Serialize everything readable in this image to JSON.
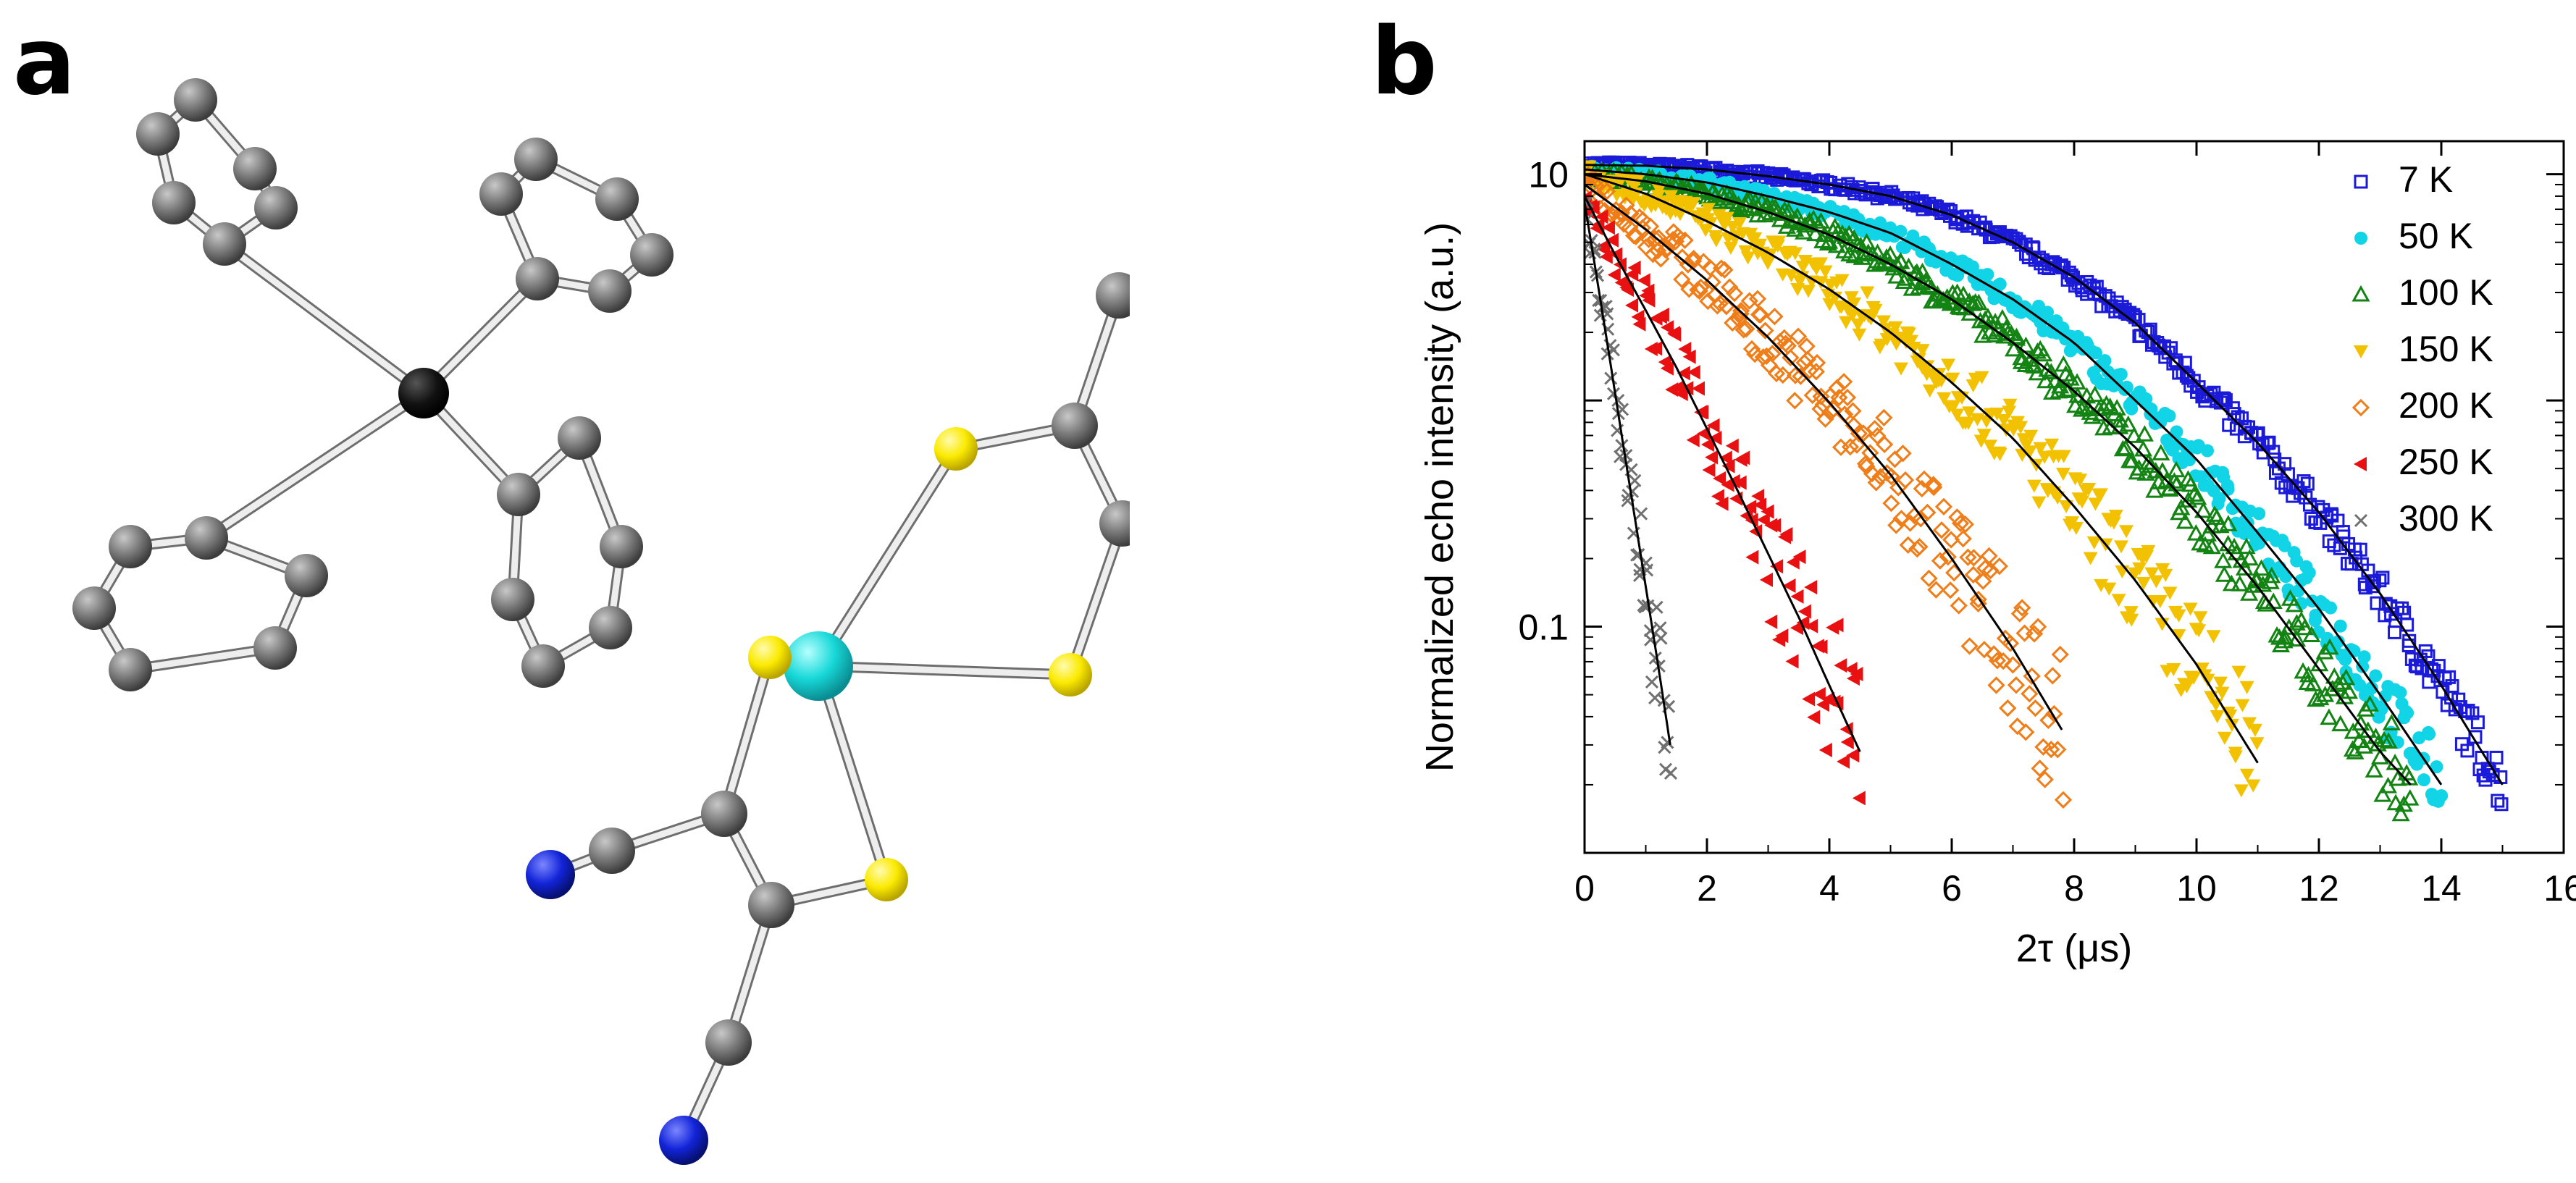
{
  "panels": {
    "a_label": "a",
    "b_label": "b"
  },
  "molecule": {
    "atom_colors": {
      "C": "#707070",
      "P": "#000000",
      "S": "#ffee00",
      "N": "#0b17d0",
      "M": "#18d8d8"
    }
  },
  "chart_data": {
    "type": "scatter",
    "title": "",
    "xlabel": "2τ (μs)",
    "ylabel": "Normalized echo intensity (a.u.)",
    "xlim": [
      0,
      16
    ],
    "ylim": [
      0.01,
      14
    ],
    "yscale": "log",
    "grid": false,
    "legend_position": "top-right",
    "x_ticks": [
      0,
      2,
      4,
      6,
      8,
      10,
      12,
      14,
      16
    ],
    "x_tick_labels": [
      "0",
      "2",
      "4",
      "6",
      "8",
      "10",
      "12",
      "14",
      "16"
    ],
    "y_ticks": [
      0.1,
      10
    ],
    "y_tick_labels": [
      "0.1",
      "10"
    ],
    "fit_lines": "black solid lines through each series",
    "series": [
      {
        "name": "7 K",
        "color": "#1a1ad8",
        "marker": "open-square",
        "x": [
          0,
          1,
          2,
          3,
          4,
          5,
          6,
          7,
          8,
          9,
          10,
          11,
          12,
          13,
          14,
          14.5,
          15
        ],
        "y": [
          11,
          10.9,
          10.5,
          9.8,
          9.0,
          8.0,
          6.6,
          5.0,
          3.5,
          2.2,
          1.2,
          0.65,
          0.32,
          0.14,
          0.055,
          0.033,
          0.02
        ]
      },
      {
        "name": "50 K",
        "color": "#11d4e6",
        "marker": "filled-circle",
        "x": [
          0,
          1,
          2,
          3,
          4,
          5,
          6,
          7,
          8,
          9,
          10,
          11,
          12,
          13,
          14
        ],
        "y": [
          10.5,
          10,
          9.2,
          8.0,
          6.8,
          5.5,
          4.0,
          2.8,
          1.8,
          1.0,
          0.55,
          0.26,
          0.12,
          0.05,
          0.02
        ]
      },
      {
        "name": "100 K",
        "color": "#138413",
        "marker": "open-triangle",
        "x": [
          0,
          1,
          2,
          3,
          4,
          5,
          6,
          7,
          8,
          9,
          10,
          11,
          12,
          13,
          13.5
        ],
        "y": [
          10,
          9.3,
          8.2,
          6.8,
          5.4,
          4.0,
          2.8,
          1.8,
          1.1,
          0.62,
          0.32,
          0.15,
          0.065,
          0.028,
          0.02
        ]
      },
      {
        "name": "150 K",
        "color": "#f2c200",
        "marker": "filled-triangle-down",
        "x": [
          0,
          1,
          2,
          3,
          4,
          5,
          6,
          7,
          8,
          9,
          10,
          11
        ],
        "y": [
          10,
          8.2,
          6.2,
          4.5,
          3.1,
          2.0,
          1.2,
          0.68,
          0.34,
          0.16,
          0.068,
          0.025
        ]
      },
      {
        "name": "200 K",
        "color": "#ef7d18",
        "marker": "open-diamond",
        "x": [
          0,
          1,
          2,
          3,
          4,
          5,
          6,
          7,
          7.8
        ],
        "y": [
          9,
          5.7,
          3.4,
          1.9,
          0.98,
          0.47,
          0.2,
          0.08,
          0.035
        ]
      },
      {
        "name": "250 K",
        "color": "#e81010",
        "marker": "filled-triangle-left",
        "x": [
          0,
          0.5,
          1,
          1.5,
          2,
          2.5,
          3,
          3.5,
          4,
          4.5
        ],
        "y": [
          8,
          4.4,
          2.5,
          1.4,
          0.75,
          0.4,
          0.21,
          0.11,
          0.055,
          0.028
        ]
      },
      {
        "name": "300 K",
        "color": "#707070",
        "marker": "x-cross",
        "x": [
          0,
          0.2,
          0.4,
          0.6,
          0.8,
          1.0,
          1.2,
          1.4
        ],
        "y": [
          7.5,
          3.5,
          1.6,
          0.72,
          0.33,
          0.15,
          0.068,
          0.03
        ]
      }
    ]
  }
}
